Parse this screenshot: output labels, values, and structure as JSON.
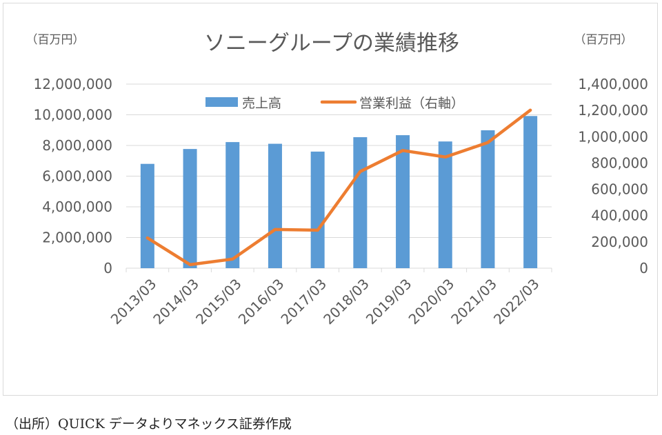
{
  "chart_data": {
    "type": "bar+line",
    "title": "ソニーグループの業績推移",
    "y_left_unit": "（百万円）",
    "y_right_unit": "（百万円）",
    "categories": [
      "2013/03",
      "2014/03",
      "2015/03",
      "2016/03",
      "2017/03",
      "2018/03",
      "2019/03",
      "2020/03",
      "2021/03",
      "2022/03"
    ],
    "series": [
      {
        "name": "売上高",
        "type": "bar",
        "axis": "left",
        "color": "#5b9bd5",
        "values": [
          6800000,
          7770000,
          8220000,
          8110000,
          7600000,
          8540000,
          8670000,
          8260000,
          8990000,
          9920000
        ]
      },
      {
        "name": "営業利益（右軸）",
        "type": "line",
        "axis": "right",
        "color": "#ed7d31",
        "values": [
          230000,
          27000,
          69000,
          294000,
          289000,
          735000,
          895000,
          846000,
          956000,
          1202000
        ]
      }
    ],
    "y_left": {
      "min": 0,
      "max": 12000000,
      "ticks": [
        "0",
        "2,000,000",
        "4,000,000",
        "6,000,000",
        "8,000,000",
        "10,000,000",
        "12,000,000"
      ]
    },
    "y_right": {
      "min": 0,
      "max": 1400000,
      "ticks": [
        "0",
        "200,000",
        "400,000",
        "600,000",
        "800,000",
        "1,000,000",
        "1,200,000",
        "1,400,000"
      ]
    },
    "grid": true,
    "legend": "top"
  },
  "source_note": "（出所）QUICK データよりマネックス証券作成"
}
